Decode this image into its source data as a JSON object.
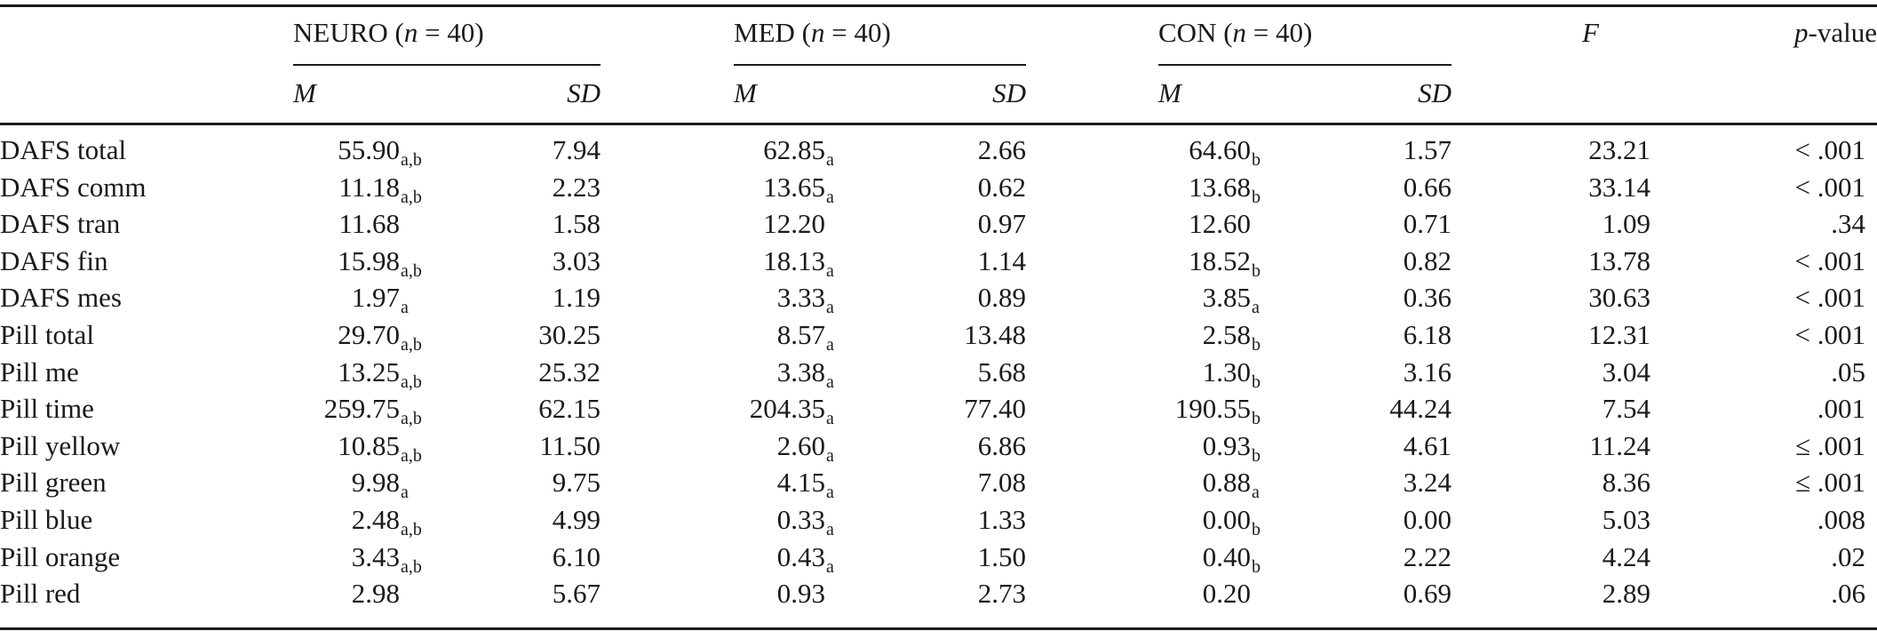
{
  "groups": [
    {
      "name": "NEURO",
      "n_label": "n",
      "n_eq": " = 40"
    },
    {
      "name": "MED",
      "n_label": "n",
      "n_eq": " = 40"
    },
    {
      "name": "CON",
      "n_label": "n",
      "n_eq": " = 40"
    }
  ],
  "subheaders": {
    "mean": "M",
    "sd": "SD"
  },
  "stat_headers": {
    "f": "F",
    "p_italic": "p",
    "p_rest": "-value"
  },
  "rows": [
    {
      "label": "DAFS total",
      "neuro_m": "55.90",
      "neuro_sub": "a,b",
      "neuro_sd": "7.94",
      "med_m": "62.85",
      "med_sub": "a",
      "med_sd": "2.66",
      "con_m": "64.60",
      "con_sub": "b",
      "con_sd": "1.57",
      "f": "23.21",
      "p": "< .001"
    },
    {
      "label": "DAFS comm",
      "neuro_m": "11.18",
      "neuro_sub": "a,b",
      "neuro_sd": "2.23",
      "med_m": "13.65",
      "med_sub": "a",
      "med_sd": "0.62",
      "con_m": "13.68",
      "con_sub": "b",
      "con_sd": "0.66",
      "f": "33.14",
      "p": "< .001"
    },
    {
      "label": "DAFS tran",
      "neuro_m": "11.68",
      "neuro_sub": "",
      "neuro_sd": "1.58",
      "med_m": "12.20",
      "med_sub": "",
      "med_sd": "0.97",
      "con_m": "12.60",
      "con_sub": "",
      "con_sd": "0.71",
      "f": "1.09",
      "p": ".34"
    },
    {
      "label": "DAFS fin",
      "neuro_m": "15.98",
      "neuro_sub": "a,b",
      "neuro_sd": "3.03",
      "med_m": "18.13",
      "med_sub": "a",
      "med_sd": "1.14",
      "con_m": "18.52",
      "con_sub": "b",
      "con_sd": "0.82",
      "f": "13.78",
      "p": "< .001"
    },
    {
      "label": "DAFS mes",
      "neuro_m": "1.97",
      "neuro_sub": "a",
      "neuro_sd": "1.19",
      "med_m": "3.33",
      "med_sub": "a",
      "med_sd": "0.89",
      "con_m": "3.85",
      "con_sub": "a",
      "con_sd": "0.36",
      "f": "30.63",
      "p": "< .001"
    },
    {
      "label": "Pill total",
      "neuro_m": "29.70",
      "neuro_sub": "a,b",
      "neuro_sd": "30.25",
      "med_m": "8.57",
      "med_sub": "a",
      "med_sd": "13.48",
      "con_m": "2.58",
      "con_sub": "b",
      "con_sd": "6.18",
      "f": "12.31",
      "p": "< .001"
    },
    {
      "label": "Pill me",
      "neuro_m": "13.25",
      "neuro_sub": "a,b",
      "neuro_sd": "25.32",
      "med_m": "3.38",
      "med_sub": "a",
      "med_sd": "5.68",
      "con_m": "1.30",
      "con_sub": "b",
      "con_sd": "3.16",
      "f": "3.04",
      "p": ".05"
    },
    {
      "label": "Pill time",
      "neuro_m": "259.75",
      "neuro_sub": "a,b",
      "neuro_sd": "62.15",
      "med_m": "204.35",
      "med_sub": "a",
      "med_sd": "77.40",
      "con_m": "190.55",
      "con_sub": "b",
      "con_sd": "44.24",
      "f": "7.54",
      "p": ".001"
    },
    {
      "label": "Pill yellow",
      "neuro_m": "10.85",
      "neuro_sub": "a,b",
      "neuro_sd": "11.50",
      "med_m": "2.60",
      "med_sub": "a",
      "med_sd": "6.86",
      "con_m": "0.93",
      "con_sub": "b",
      "con_sd": "4.61",
      "f": "11.24",
      "p": "≤ .001"
    },
    {
      "label": "Pill green",
      "neuro_m": "9.98",
      "neuro_sub": "a",
      "neuro_sd": "9.75",
      "med_m": "4.15",
      "med_sub": "a",
      "med_sd": "7.08",
      "con_m": "0.88",
      "con_sub": "a",
      "con_sd": "3.24",
      "f": "8.36",
      "p": "≤ .001"
    },
    {
      "label": "Pill blue",
      "neuro_m": "2.48",
      "neuro_sub": "a,b",
      "neuro_sd": "4.99",
      "med_m": "0.33",
      "med_sub": "a",
      "med_sd": "1.33",
      "con_m": "0.00",
      "con_sub": "b",
      "con_sd": "0.00",
      "f": "5.03",
      "p": ".008"
    },
    {
      "label": "Pill orange",
      "neuro_m": "3.43",
      "neuro_sub": "a,b",
      "neuro_sd": "6.10",
      "med_m": "0.43",
      "med_sub": "a",
      "med_sd": "1.50",
      "con_m": "0.40",
      "con_sub": "b",
      "con_sd": "2.22",
      "f": "4.24",
      "p": ".02"
    },
    {
      "label": "Pill red",
      "neuro_m": "2.98",
      "neuro_sub": "",
      "neuro_sd": "5.67",
      "med_m": "0.93",
      "med_sub": "",
      "med_sd": "2.73",
      "con_m": "0.20",
      "con_sub": "",
      "con_sd": "0.69",
      "f": "2.89",
      "p": ".06"
    }
  ]
}
